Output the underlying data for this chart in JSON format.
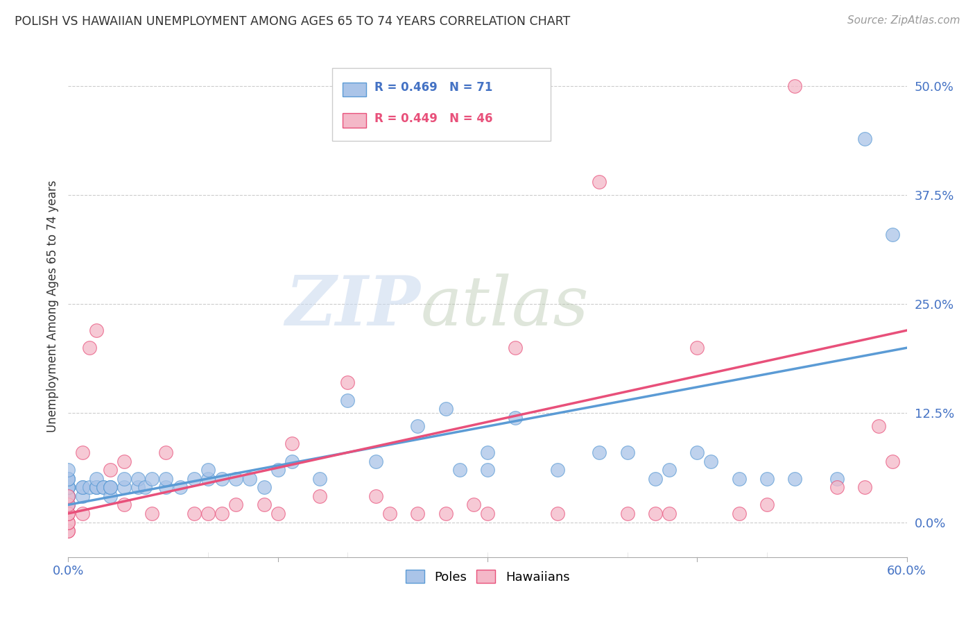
{
  "title": "POLISH VS HAWAIIAN UNEMPLOYMENT AMONG AGES 65 TO 74 YEARS CORRELATION CHART",
  "source": "Source: ZipAtlas.com",
  "ylabel": "Unemployment Among Ages 65 to 74 years",
  "ytick_labels": [
    "0.0%",
    "12.5%",
    "25.0%",
    "37.5%",
    "50.0%"
  ],
  "ytick_values": [
    0.0,
    0.125,
    0.25,
    0.375,
    0.5
  ],
  "xlim": [
    0.0,
    0.6
  ],
  "ylim": [
    -0.04,
    0.535
  ],
  "poles_color": "#5b9bd5",
  "poles_fill": "#aac4e8",
  "hawaiians_color": "#e8507a",
  "hawaiians_fill": "#f4b8c8",
  "background_color": "#ffffff",
  "poles_scatter_x": [
    0.0,
    0.0,
    0.0,
    0.0,
    0.0,
    0.0,
    0.0,
    0.0,
    0.0,
    0.0,
    0.0,
    0.0,
    0.0,
    0.0,
    0.0,
    0.0,
    0.01,
    0.01,
    0.01,
    0.015,
    0.02,
    0.02,
    0.02,
    0.02,
    0.025,
    0.025,
    0.03,
    0.03,
    0.03,
    0.03,
    0.04,
    0.04,
    0.05,
    0.05,
    0.055,
    0.06,
    0.07,
    0.07,
    0.08,
    0.09,
    0.1,
    0.1,
    0.11,
    0.12,
    0.13,
    0.14,
    0.15,
    0.16,
    0.18,
    0.2,
    0.22,
    0.25,
    0.27,
    0.28,
    0.3,
    0.3,
    0.32,
    0.35,
    0.38,
    0.4,
    0.42,
    0.43,
    0.45,
    0.46,
    0.48,
    0.5,
    0.52,
    0.55,
    0.57,
    0.59
  ],
  "poles_scatter_y": [
    0.02,
    0.02,
    0.03,
    0.03,
    0.03,
    0.04,
    0.04,
    0.04,
    0.04,
    0.04,
    0.04,
    0.04,
    0.05,
    0.05,
    0.05,
    0.06,
    0.03,
    0.04,
    0.04,
    0.04,
    0.04,
    0.04,
    0.04,
    0.05,
    0.04,
    0.04,
    0.03,
    0.04,
    0.04,
    0.04,
    0.04,
    0.05,
    0.04,
    0.05,
    0.04,
    0.05,
    0.04,
    0.05,
    0.04,
    0.05,
    0.05,
    0.06,
    0.05,
    0.05,
    0.05,
    0.04,
    0.06,
    0.07,
    0.05,
    0.14,
    0.07,
    0.11,
    0.13,
    0.06,
    0.08,
    0.06,
    0.12,
    0.06,
    0.08,
    0.08,
    0.05,
    0.06,
    0.08,
    0.07,
    0.05,
    0.05,
    0.05,
    0.05,
    0.44,
    0.33
  ],
  "hawaiians_scatter_x": [
    0.0,
    0.0,
    0.0,
    0.0,
    0.0,
    0.0,
    0.0,
    0.0,
    0.01,
    0.01,
    0.015,
    0.02,
    0.03,
    0.04,
    0.04,
    0.06,
    0.07,
    0.09,
    0.1,
    0.11,
    0.12,
    0.14,
    0.15,
    0.16,
    0.18,
    0.2,
    0.22,
    0.23,
    0.25,
    0.27,
    0.29,
    0.3,
    0.32,
    0.35,
    0.38,
    0.4,
    0.42,
    0.43,
    0.45,
    0.48,
    0.5,
    0.52,
    0.55,
    0.57,
    0.58,
    0.59
  ],
  "hawaiians_scatter_y": [
    -0.01,
    -0.01,
    0.0,
    0.0,
    0.01,
    0.01,
    0.02,
    0.03,
    0.08,
    0.01,
    0.2,
    0.22,
    0.06,
    0.02,
    0.07,
    0.01,
    0.08,
    0.01,
    0.01,
    0.01,
    0.02,
    0.02,
    0.01,
    0.09,
    0.03,
    0.16,
    0.03,
    0.01,
    0.01,
    0.01,
    0.02,
    0.01,
    0.2,
    0.01,
    0.39,
    0.01,
    0.01,
    0.01,
    0.2,
    0.01,
    0.02,
    0.5,
    0.04,
    0.04,
    0.11,
    0.07
  ],
  "poles_line_x": [
    0.0,
    0.6
  ],
  "poles_line_y": [
    0.02,
    0.2
  ],
  "hawaiians_line_x": [
    0.0,
    0.6
  ],
  "hawaiians_line_y": [
    0.01,
    0.22
  ]
}
